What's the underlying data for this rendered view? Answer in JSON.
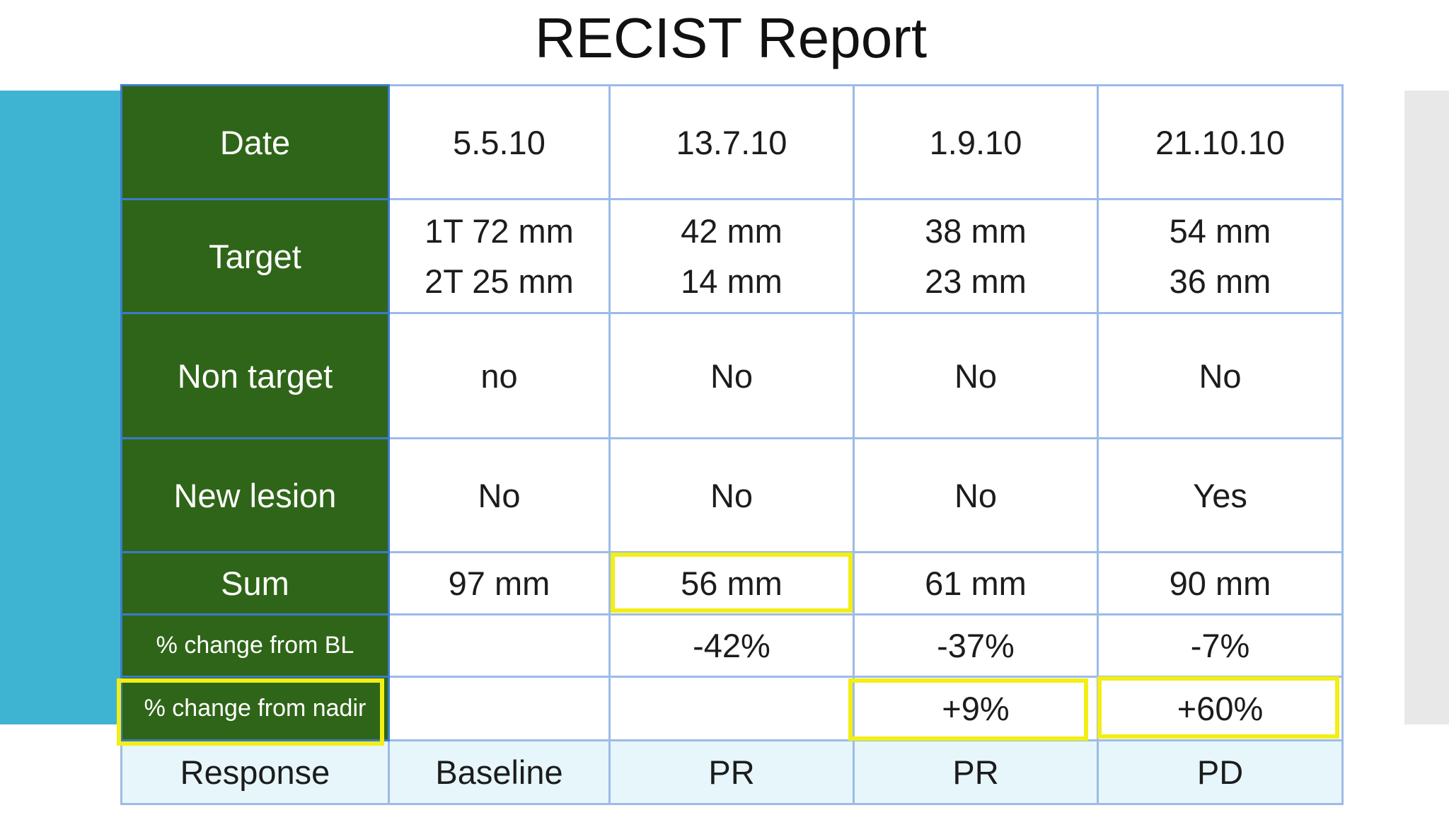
{
  "title": "RECIST Report",
  "colors": {
    "header_green": "#2f6518",
    "left_band": "#3fb4d2",
    "highlight": "#f2ee16",
    "response_row": "#e6f6fb"
  },
  "rows": {
    "date": {
      "label": "Date",
      "values": [
        "5.5.10",
        "13.7.10",
        "1.9.10",
        "21.10.10"
      ]
    },
    "target": {
      "label": "Target",
      "line1": [
        "1T 72 mm",
        "42 mm",
        "38 mm",
        "54 mm"
      ],
      "line2": [
        "2T 25 mm",
        "14 mm",
        "23 mm",
        "36 mm"
      ]
    },
    "non_target": {
      "label": "Non target",
      "values": [
        "no",
        "No",
        "No",
        "No"
      ]
    },
    "new_lesion": {
      "label": "New lesion",
      "values": [
        "No",
        "No",
        "No",
        "Yes"
      ]
    },
    "sum": {
      "label": "Sum",
      "values": [
        "97 mm",
        "56 mm",
        "61 mm",
        "90 mm"
      ]
    },
    "change_bl": {
      "label": "% change from BL",
      "values": [
        "",
        "-42%",
        "-37%",
        "-7%"
      ]
    },
    "change_nadir": {
      "label": "% change from nadir",
      "values": [
        "",
        "",
        "+9%",
        "+60%"
      ]
    },
    "response": {
      "label": "Response",
      "values": [
        "Baseline",
        "PR",
        "PR",
        "PD"
      ]
    }
  },
  "highlighted_cells": [
    "sum-13.7.10",
    "change-from-nadir-label",
    "nadir-1.9.10",
    "nadir-21.10.10"
  ]
}
